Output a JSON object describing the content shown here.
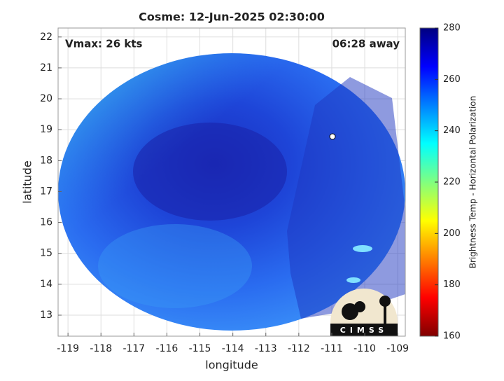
{
  "chart_data": {
    "type": "map",
    "title": "Cosme: 12-Jun-2025 02:30:00",
    "annotations": [
      "Vmax: 26 kts",
      "06:28 away"
    ],
    "xlabel": "longitude",
    "ylabel": "latitude",
    "xlim": [
      -119.3,
      -108.77
    ],
    "ylim": [
      12.32,
      22.29
    ],
    "xticks": [
      -119,
      -118,
      -117,
      -116,
      -115,
      -114,
      -113,
      -112,
      -111,
      -110,
      -109
    ],
    "yticks": [
      13,
      14,
      15,
      16,
      17,
      18,
      19,
      20,
      21,
      22
    ],
    "grid": true,
    "colorbar": {
      "label": "Brightness Temp - Horizontal Polarization",
      "lim": [
        160,
        280
      ],
      "ticks": [
        160,
        180,
        200,
        220,
        240,
        260,
        280
      ],
      "colormap": [
        "#800000",
        "#ff0000",
        "#ff8000",
        "#ffff00",
        "#80ff80",
        "#00ffff",
        "#0080ff",
        "#0000ff",
        "#000080"
      ]
    },
    "logo": "CIMSS"
  }
}
